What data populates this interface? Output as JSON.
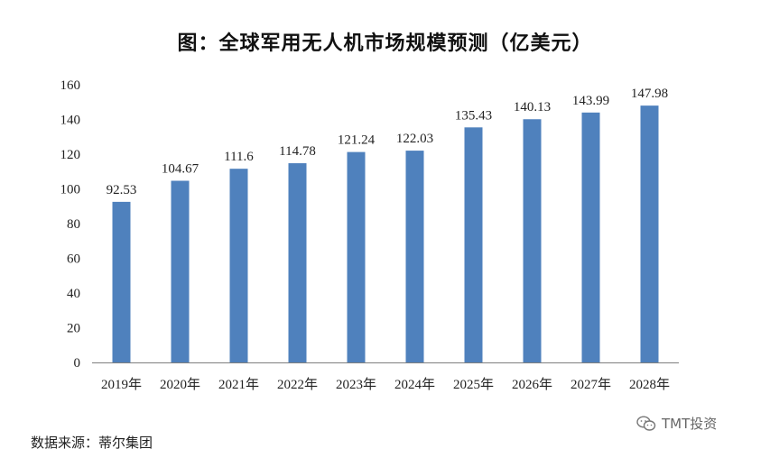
{
  "title": "图：全球军用无人机市场规模预测（亿美元）",
  "source": "数据来源：蒂尔集团",
  "watermark": {
    "text": "TMT投资",
    "icon": "wechat-icon"
  },
  "colors": {
    "bar": "#4f81bd",
    "axis": "#7f7f7f",
    "text": "#222222"
  },
  "chart_data": {
    "type": "bar",
    "title": "图：全球军用无人机市场规模预测（亿美元）",
    "categories": [
      "2019年",
      "2020年",
      "2021年",
      "2022年",
      "2023年",
      "2024年",
      "2025年",
      "2026年",
      "2027年",
      "2028年"
    ],
    "values": [
      92.53,
      104.67,
      111.6,
      114.78,
      121.24,
      122.03,
      135.43,
      140.13,
      143.99,
      147.98
    ],
    "data_labels": [
      "92.53",
      "104.67",
      "111.6",
      "114.78",
      "121.24",
      "122.03",
      "135.43",
      "140.13",
      "143.99",
      "147.98"
    ],
    "ylim": [
      0,
      160
    ],
    "yticks": [
      0,
      20,
      40,
      60,
      80,
      100,
      120,
      140,
      160
    ],
    "xlabel": "",
    "ylabel": "",
    "grid": false,
    "legend": "none"
  }
}
